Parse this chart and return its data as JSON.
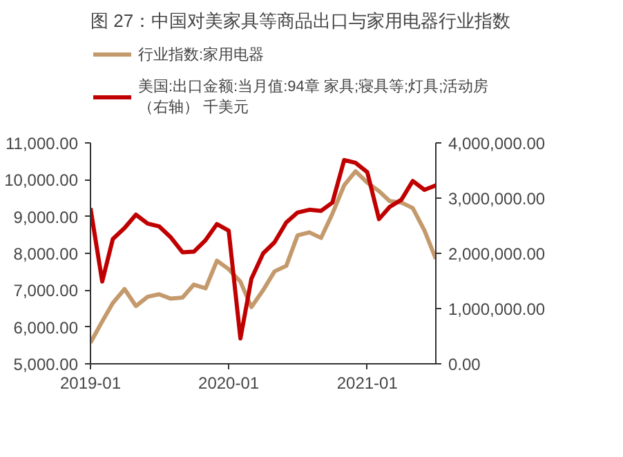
{
  "chart_data": {
    "type": "line",
    "title": "图 27：中国对美家具等商品出口与家用电器行业指数",
    "x": [
      "2019-01",
      "2019-02",
      "2019-03",
      "2019-04",
      "2019-05",
      "2019-06",
      "2019-07",
      "2019-08",
      "2019-09",
      "2019-10",
      "2019-11",
      "2019-12",
      "2020-01",
      "2020-02",
      "2020-03",
      "2020-04",
      "2020-05",
      "2020-06",
      "2020-07",
      "2020-08",
      "2020-09",
      "2020-10",
      "2020-11",
      "2020-12",
      "2021-01",
      "2021-02",
      "2021-03",
      "2021-04",
      "2021-05",
      "2021-06",
      "2021-07"
    ],
    "series": [
      {
        "name": "行业指数:家用电器",
        "color": "#c49a6c",
        "values": [
          5570,
          6150,
          6650,
          7030,
          6570,
          6820,
          6890,
          6770,
          6800,
          7150,
          7050,
          7800,
          7570,
          7230,
          6540,
          7000,
          7510,
          7660,
          8490,
          8570,
          8420,
          9080,
          9850,
          10230,
          9920,
          9690,
          9420,
          9380,
          9230,
          8620,
          7850
        ]
      },
      {
        "name": "美国:出口金额:当月值:94章 家具;寝具等;灯具;活动房（右轴） 千美元",
        "color": "#c00000",
        "axis": "y2",
        "values": [
          2820000,
          1490000,
          2260000,
          2460000,
          2700000,
          2540000,
          2490000,
          2290000,
          2020000,
          2030000,
          2240000,
          2530000,
          2410000,
          460000,
          1540000,
          2000000,
          2200000,
          2560000,
          2740000,
          2790000,
          2770000,
          2920000,
          3690000,
          3640000,
          3470000,
          2620000,
          2840000,
          2970000,
          3310000,
          3150000,
          3230000
        ]
      }
    ],
    "xlim": [
      "2019-01",
      "2021-07"
    ],
    "xticks": [
      "2019-01",
      "2020-01",
      "2021-01"
    ],
    "ylim": [
      5000,
      11000
    ],
    "yticks": [
      {
        "value": 5000,
        "label": "5,000.00"
      },
      {
        "value": 6000,
        "label": "6,000.00"
      },
      {
        "value": 7000,
        "label": "7,000.00"
      },
      {
        "value": 8000,
        "label": "8,000.00"
      },
      {
        "value": 9000,
        "label": "9,000.00"
      },
      {
        "value": 10000,
        "label": "10,000.00"
      },
      {
        "value": 11000,
        "label": "11,000.00"
      }
    ],
    "y2lim": [
      0,
      4000000
    ],
    "y2ticks": [
      {
        "value": 0,
        "label": "0.00"
      },
      {
        "value": 1000000,
        "label": "1,000,000.00"
      },
      {
        "value": 2000000,
        "label": "2,000,000.00"
      },
      {
        "value": 3000000,
        "label": "3,000,000.00"
      },
      {
        "value": 4000000,
        "label": "4,000,000.00"
      }
    ],
    "legend": "top",
    "grid": false
  }
}
